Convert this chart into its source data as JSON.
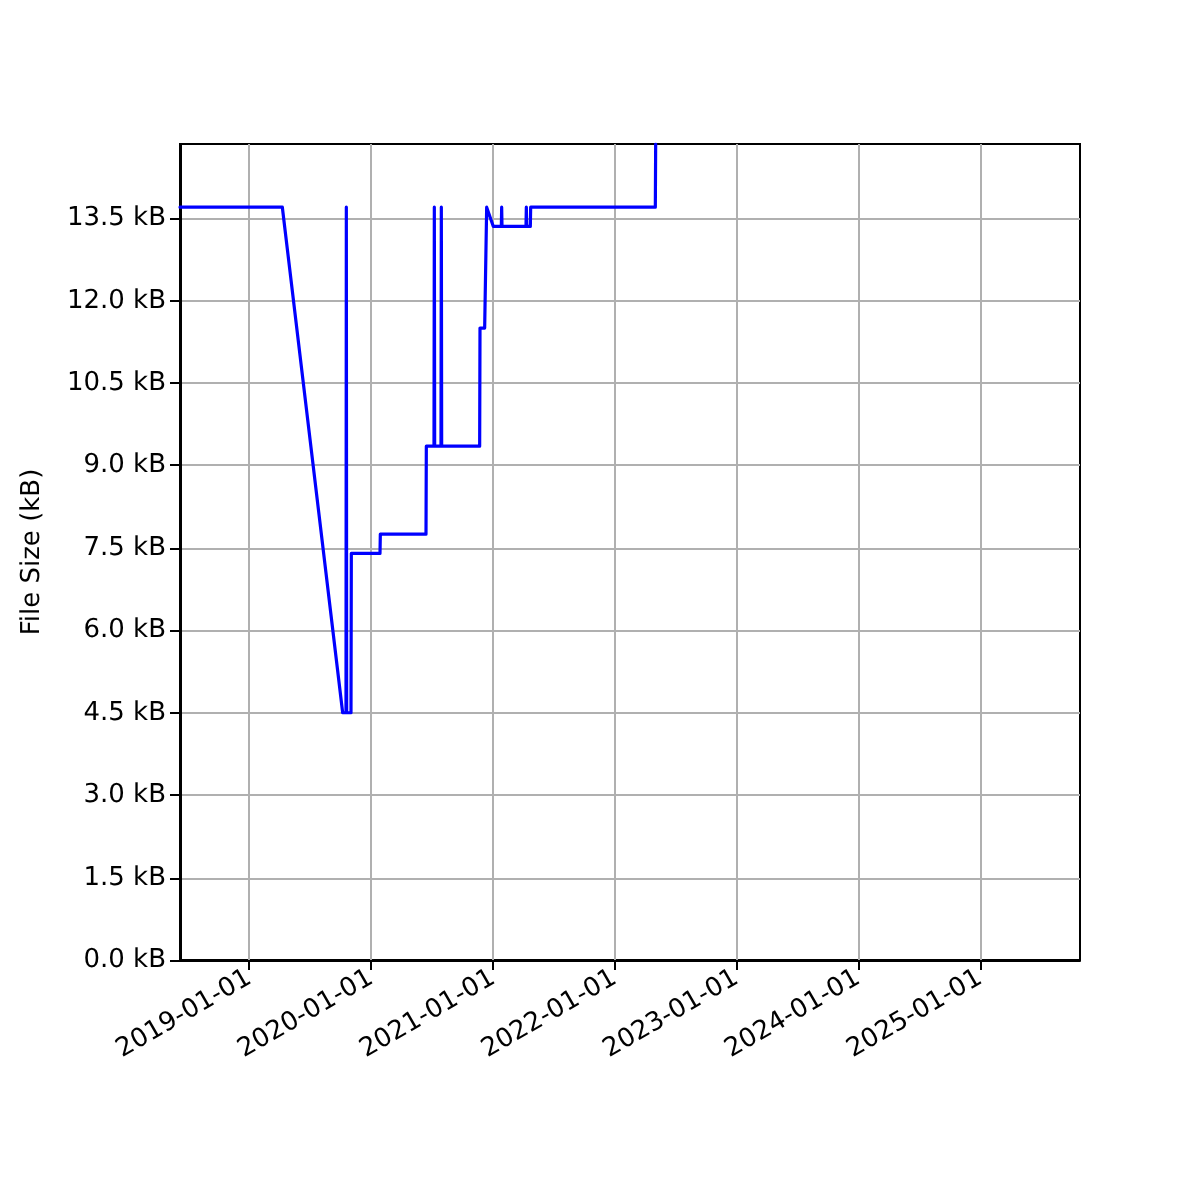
{
  "chart_data": {
    "type": "line",
    "ylabel": "File Size (kB)",
    "x": [
      "2018-06-07",
      "2019-04-10",
      "2019-10-08",
      "2019-10-18",
      "2019-10-19",
      "2019-10-20",
      "2019-11-02",
      "2019-11-03",
      "2020-01-28",
      "2020-01-29",
      "2020-06-14",
      "2020-06-15",
      "2020-07-08",
      "2020-07-09",
      "2020-07-10",
      "2020-07-29",
      "2020-07-30",
      "2020-07-31",
      "2020-11-22",
      "2020-11-23",
      "2020-12-07",
      "2020-12-13",
      "2021-01-02",
      "2021-01-26",
      "2021-01-27",
      "2021-01-28",
      "2021-04-10",
      "2021-04-11",
      "2021-04-12",
      "2021-04-23",
      "2021-04-24",
      "2022-05-03",
      "2022-05-04"
    ],
    "values": [
      13.7,
      13.7,
      4.5,
      4.5,
      13.7,
      4.5,
      4.5,
      7.4,
      7.4,
      7.75,
      7.75,
      9.35,
      9.35,
      13.7,
      9.35,
      9.35,
      13.7,
      9.35,
      9.35,
      11.5,
      11.5,
      13.7,
      13.35,
      13.35,
      13.7,
      13.35,
      13.35,
      13.7,
      13.35,
      13.35,
      13.7,
      13.7,
      14.85
    ],
    "color": "#0000ff",
    "xlim": [
      "2018-06-07",
      "2025-10-28"
    ],
    "ylim": [
      0,
      14.85
    ],
    "xticks": [
      "2019-01-01",
      "2020-01-01",
      "2021-01-01",
      "2022-01-01",
      "2023-01-01",
      "2024-01-01",
      "2025-01-01"
    ],
    "yticks": [
      {
        "value": 0,
        "label": "0.0 kB"
      },
      {
        "value": 1.5,
        "label": "1.5 kB"
      },
      {
        "value": 3,
        "label": "3.0 kB"
      },
      {
        "value": 4.5,
        "label": "4.5 kB"
      },
      {
        "value": 6,
        "label": "6.0 kB"
      },
      {
        "value": 7.5,
        "label": "7.5 kB"
      },
      {
        "value": 9,
        "label": "9.0 kB"
      },
      {
        "value": 10.5,
        "label": "10.5 kB"
      },
      {
        "value": 12,
        "label": "12.0 kB"
      },
      {
        "value": 13.5,
        "label": "13.5 kB"
      }
    ],
    "grid": true,
    "marker": "none",
    "line_style": "solid"
  }
}
